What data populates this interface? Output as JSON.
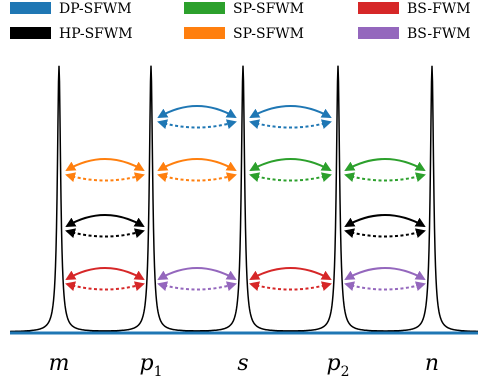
{
  "legend": [
    {
      "label": "DP-SFWM",
      "color": "#1f77b4"
    },
    {
      "label": "SP-SFWM",
      "color": "#2ca02c"
    },
    {
      "label": "BS-FWM",
      "color": "#d62728"
    },
    {
      "label": "HP-SFWM",
      "color": "#000000"
    },
    {
      "label": "SP-SFWM",
      "color": "#ff7f0e"
    },
    {
      "label": "BS-FWM",
      "color": "#9467bd"
    }
  ],
  "modes": [
    {
      "name": "m",
      "sub": ""
    },
    {
      "name": "p",
      "sub": "1"
    },
    {
      "name": "s",
      "sub": ""
    },
    {
      "name": "p",
      "sub": "2"
    },
    {
      "name": "n",
      "sub": ""
    }
  ],
  "baseline_color": "#1f77b4",
  "transitions": [
    {
      "process": "DP-SFWM",
      "color": "#1f77b4",
      "row": 1,
      "pairs": [
        [
          1,
          2
        ],
        [
          2,
          3
        ]
      ]
    },
    {
      "process": "SP-SFWM",
      "color": "#ff7f0e",
      "row": 2,
      "pairs": [
        [
          0,
          1
        ],
        [
          1,
          2
        ]
      ]
    },
    {
      "process": "SP-SFWM",
      "color": "#2ca02c",
      "row": 2,
      "pairs": [
        [
          2,
          3
        ],
        [
          3,
          4
        ]
      ]
    },
    {
      "process": "HP-SFWM",
      "color": "#000000",
      "row": 3,
      "pairs": [
        [
          0,
          1
        ],
        [
          3,
          4
        ]
      ]
    },
    {
      "process": "BS-FWM",
      "color": "#d62728",
      "row": 4,
      "pairs": [
        [
          0,
          1
        ],
        [
          2,
          3
        ]
      ]
    },
    {
      "process": "BS-FWM",
      "color": "#9467bd",
      "row": 4,
      "pairs": [
        [
          1,
          2
        ],
        [
          3,
          4
        ]
      ]
    }
  ]
}
